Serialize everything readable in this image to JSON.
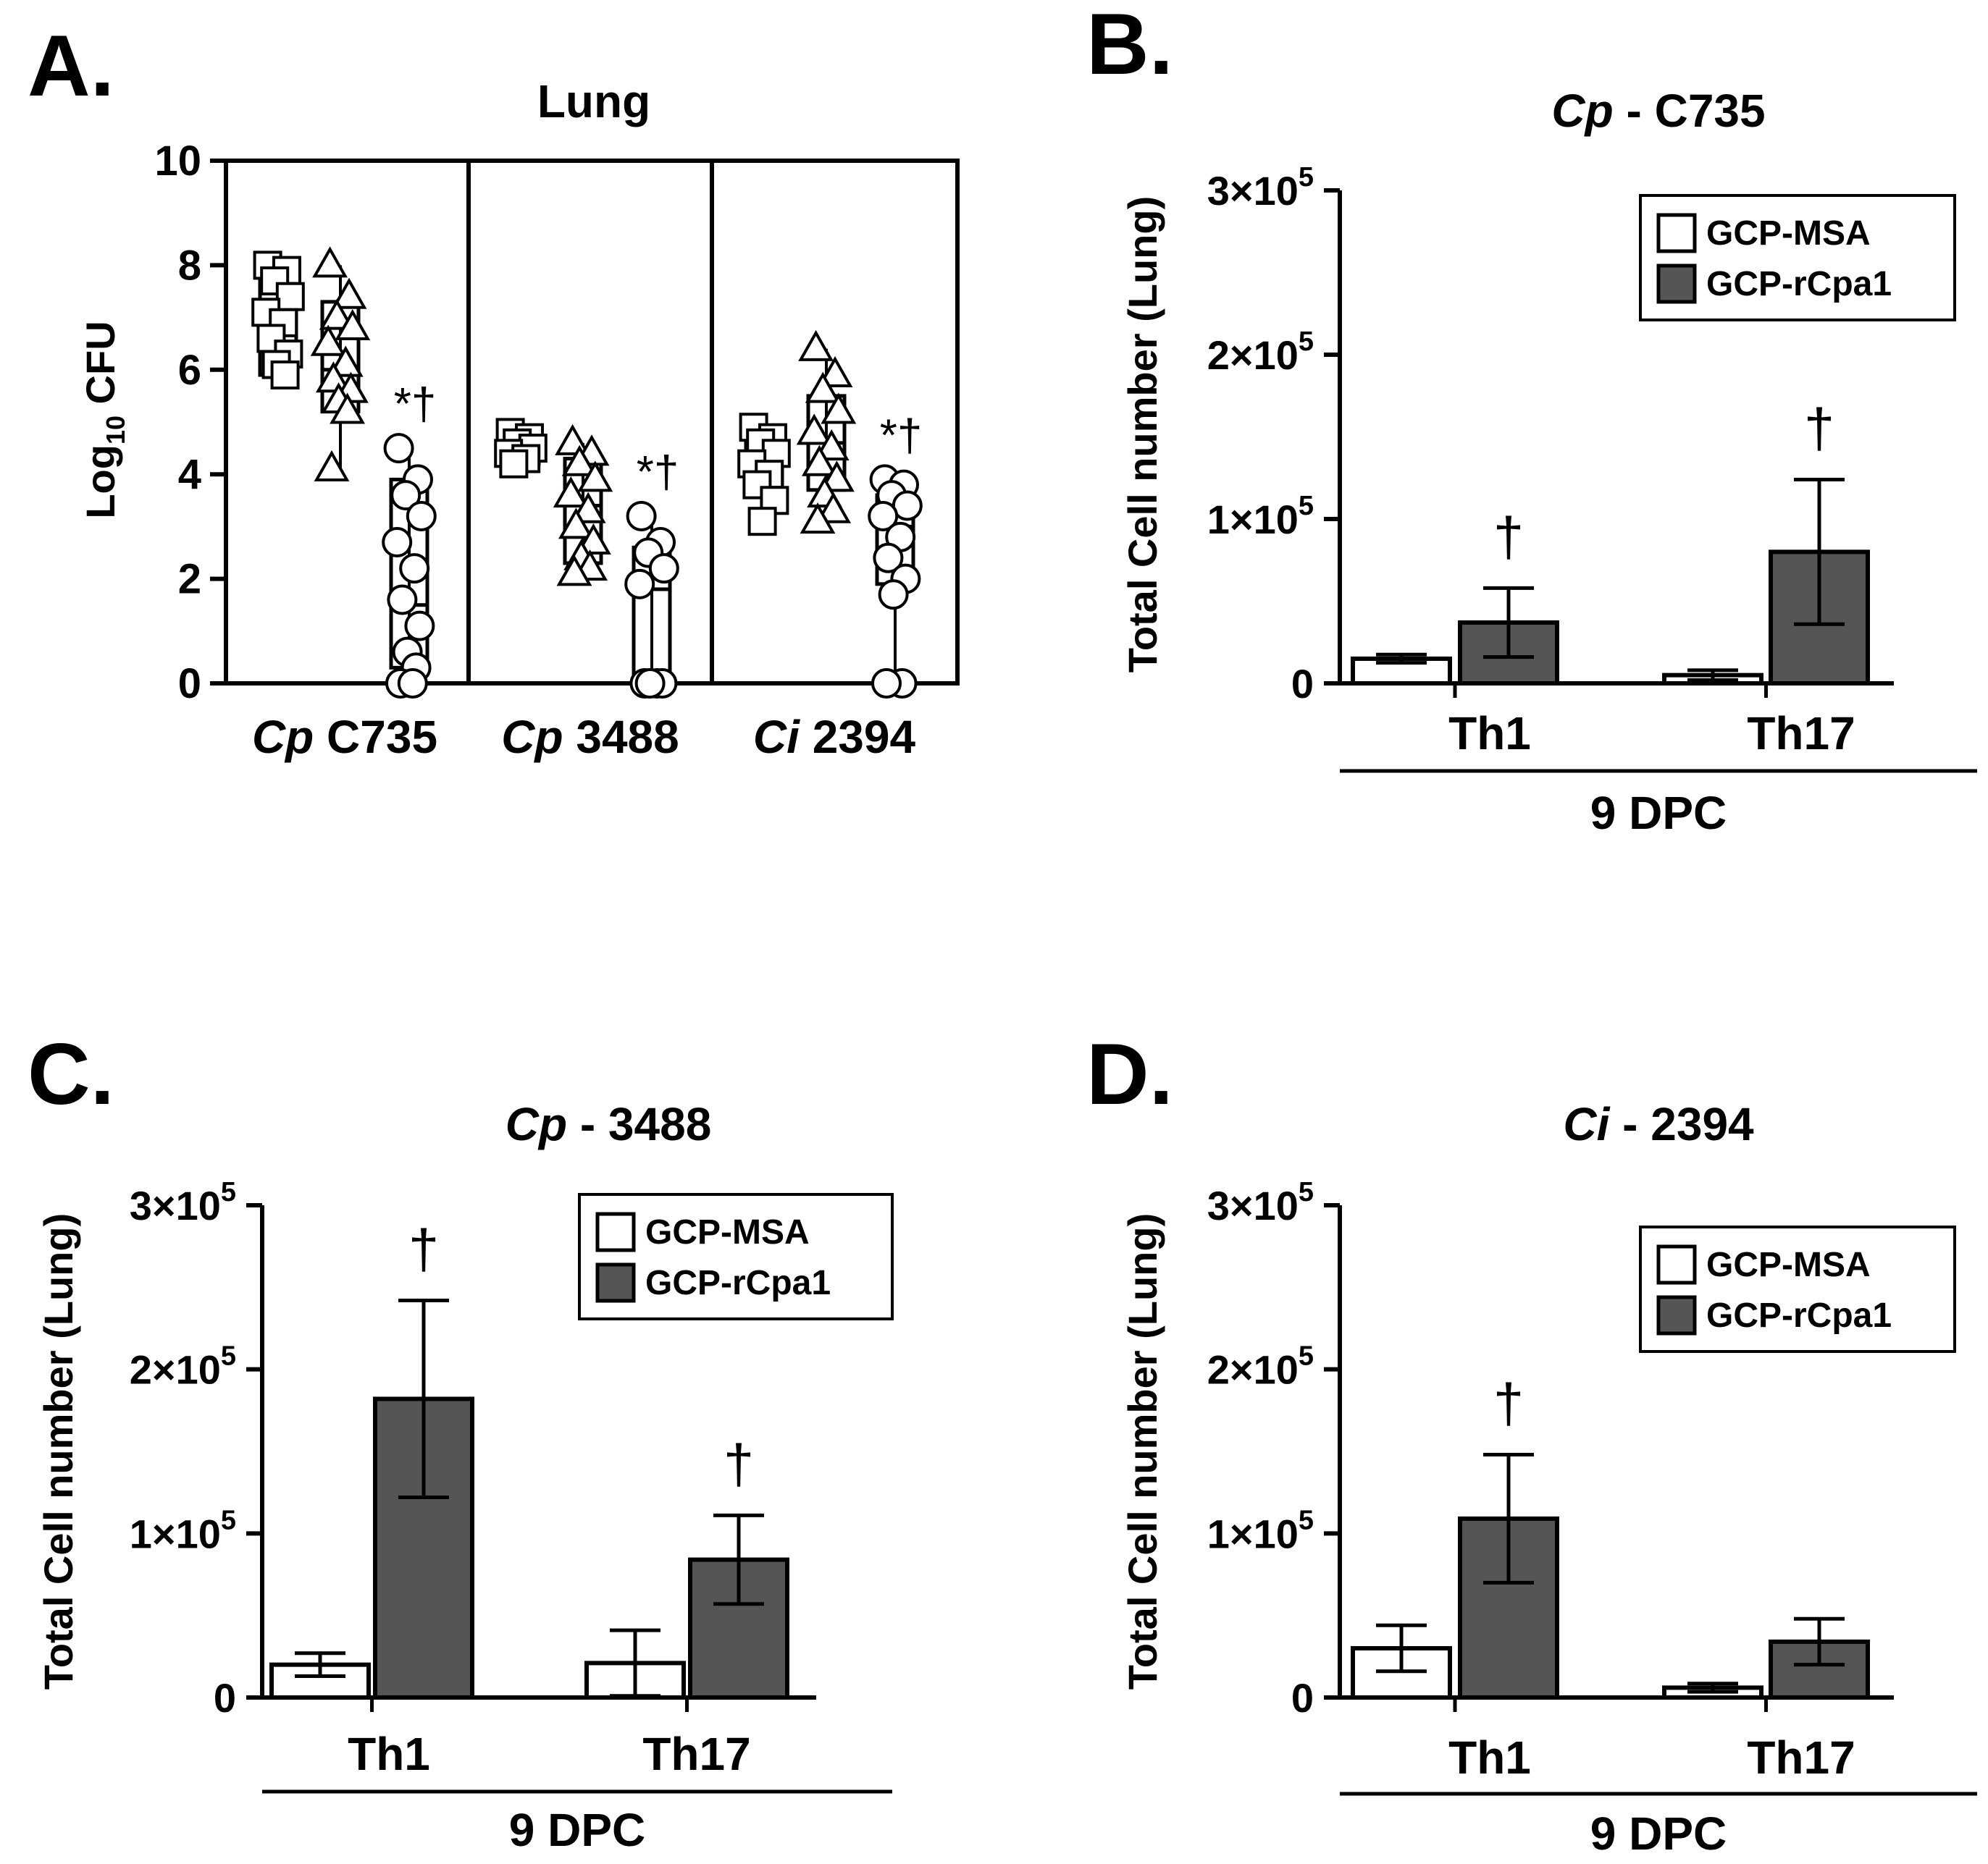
{
  "colors": {
    "msa": "#ffffff",
    "rcpa1": "#555555",
    "stroke": "#000000"
  },
  "chart_data": [
    {
      "panel": "A.",
      "type": "scatter",
      "title": "Lung",
      "ylabel_main": "Log",
      "ylabel_sub": "10",
      "ylabel_rest": " CFU",
      "ylim": [
        0,
        10
      ],
      "yticks": [
        "0",
        "2",
        "4",
        "6",
        "8",
        "10"
      ],
      "groups": [
        {
          "label_italic": "Cp",
          "label_rest": " C735",
          "series": [
            {
              "marker": "square",
              "values": [
                8.0,
                7.9,
                7.7,
                7.4,
                7.1,
                6.9,
                6.6,
                6.3,
                6.1,
                5.9
              ],
              "box": [
                5.9,
                8.0
              ],
              "median": 6.9
            },
            {
              "marker": "triangle",
              "values": [
                8.0,
                7.4,
                7.0,
                6.8,
                6.5,
                6.1,
                5.8,
                5.6,
                5.4,
                5.2,
                4.1
              ],
              "box": [
                5.2,
                7.3
              ],
              "median": 6.0
            },
            {
              "marker": "circle",
              "values": [
                4.5,
                3.9,
                3.6,
                3.2,
                2.7,
                2.2,
                1.6,
                1.1,
                0.6,
                0.3,
                0,
                0
              ],
              "box": [
                0.3,
                3.9
              ],
              "median": 1.5,
              "annotation": "*†"
            }
          ]
        },
        {
          "label_italic": "Cp",
          "label_rest": " 3488",
          "series": [
            {
              "marker": "square",
              "values": [
                4.8,
                4.7,
                4.6,
                4.5,
                4.4,
                4.3,
                4.2
              ],
              "box": [
                4.2,
                4.8
              ],
              "median": 4.5
            },
            {
              "marker": "triangle",
              "values": [
                4.6,
                4.4,
                4.2,
                3.9,
                3.6,
                3.3,
                3.0,
                2.7,
                2.4,
                2.2,
                2.1
              ],
              "box": [
                2.3,
                4.3
              ],
              "median": 3.4
            },
            {
              "marker": "circle",
              "values": [
                3.2,
                2.7,
                2.5,
                2.2,
                1.9,
                0,
                0,
                0,
                0
              ],
              "box": [
                0,
                2.6
              ],
              "median": 1.8,
              "annotation": "*†"
            }
          ]
        },
        {
          "label_italic": "Ci",
          "label_rest": " 2394",
          "series": [
            {
              "marker": "square",
              "values": [
                4.9,
                4.7,
                4.6,
                4.4,
                4.2,
                4.0,
                3.8,
                3.5,
                3.1
              ],
              "box": [
                3.7,
                4.8
              ],
              "median": 4.2
            },
            {
              "marker": "triangle",
              "values": [
                6.4,
                5.9,
                5.6,
                5.2,
                4.8,
                4.5,
                4.2,
                3.9,
                3.6,
                3.3,
                3.1
              ],
              "box": [
                3.7,
                5.5
              ],
              "median": 4.6
            },
            {
              "marker": "circle",
              "values": [
                3.9,
                3.8,
                3.6,
                3.4,
                3.2,
                2.8,
                2.4,
                2.0,
                1.7,
                0,
                0
              ],
              "box": [
                1.9,
                3.6
              ],
              "median": 3.0,
              "annotation": "*†"
            }
          ]
        }
      ]
    },
    {
      "panel": "B.",
      "type": "bar",
      "title_italic": "Cp",
      "title_rest": " - C735",
      "ylabel": "Total Cell number (Lung)",
      "ylim": [
        0,
        300000
      ],
      "yticks": [
        {
          "value": 0,
          "mant": "0",
          "exp": ""
        },
        {
          "value": 100000,
          "mant": "1×10",
          "exp": "5"
        },
        {
          "value": 200000,
          "mant": "2×10",
          "exp": "5"
        },
        {
          "value": 300000,
          "mant": "3×10",
          "exp": "5"
        }
      ],
      "categories": [
        "Th1",
        "Th17"
      ],
      "xgroup": "9 DPC",
      "legend": [
        "GCP-MSA",
        "GCP-rCpa1"
      ],
      "series": [
        {
          "name": "GCP-MSA",
          "values": [
            15000,
            5000
          ],
          "errors": [
            2500,
            3000
          ],
          "annotations": [
            "",
            ""
          ]
        },
        {
          "name": "GCP-rCpa1",
          "values": [
            37000,
            80000
          ],
          "errors": [
            21000,
            44000
          ],
          "annotations": [
            "†",
            "†"
          ]
        }
      ]
    },
    {
      "panel": "C.",
      "type": "bar",
      "title_italic": "Cp",
      "title_rest": " - 3488",
      "ylabel": "Total Cell number (Lung)",
      "ylim": [
        0,
        300000
      ],
      "yticks": [
        {
          "value": 0,
          "mant": "0",
          "exp": ""
        },
        {
          "value": 100000,
          "mant": "1×10",
          "exp": "5"
        },
        {
          "value": 200000,
          "mant": "2×10",
          "exp": "5"
        },
        {
          "value": 300000,
          "mant": "3×10",
          "exp": "5"
        }
      ],
      "categories": [
        "Th1",
        "Th17"
      ],
      "xgroup": "9 DPC",
      "legend": [
        "GCP-MSA",
        "GCP-rCpa1"
      ],
      "series": [
        {
          "name": "GCP-MSA",
          "values": [
            20000,
            21000
          ],
          "errors": [
            7000,
            20000
          ],
          "annotations": [
            "",
            ""
          ]
        },
        {
          "name": "GCP-rCpa1",
          "values": [
            182000,
            84000
          ],
          "errors": [
            60000,
            27000
          ],
          "annotations": [
            "†",
            "†"
          ]
        }
      ]
    },
    {
      "panel": "D.",
      "type": "bar",
      "title_italic": "Ci",
      "title_rest": " - 2394",
      "ylabel": "Total Cell number (Lung)",
      "ylim": [
        0,
        300000
      ],
      "yticks": [
        {
          "value": 0,
          "mant": "0",
          "exp": ""
        },
        {
          "value": 100000,
          "mant": "1×10",
          "exp": "5"
        },
        {
          "value": 200000,
          "mant": "2×10",
          "exp": "5"
        },
        {
          "value": 300000,
          "mant": "3×10",
          "exp": "5"
        }
      ],
      "categories": [
        "Th1",
        "Th17"
      ],
      "xgroup": "9 DPC",
      "legend": [
        "GCP-MSA",
        "GCP-rCpa1"
      ],
      "series": [
        {
          "name": "GCP-MSA",
          "values": [
            30000,
            6000
          ],
          "errors": [
            14000,
            2500
          ],
          "annotations": [
            "",
            ""
          ]
        },
        {
          "name": "GCP-rCpa1",
          "values": [
            109000,
            34000
          ],
          "errors": [
            39000,
            14000
          ],
          "annotations": [
            "†",
            ""
          ]
        }
      ]
    }
  ]
}
